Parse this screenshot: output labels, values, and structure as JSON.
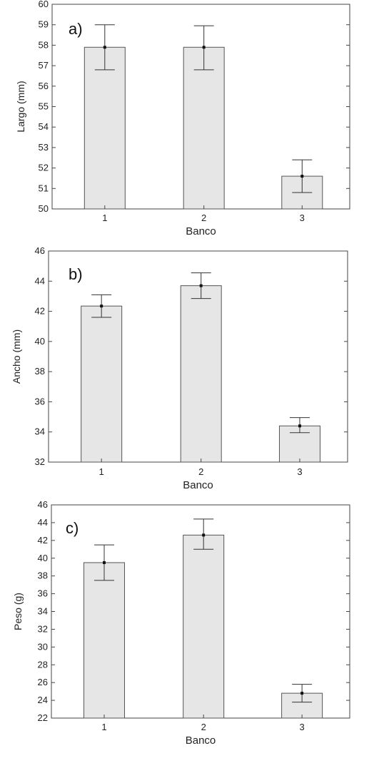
{
  "chart_data": [
    {
      "type": "bar",
      "panel_label": "a)",
      "categories": [
        "1",
        "2",
        "3"
      ],
      "values": [
        57.9,
        57.9,
        51.6
      ],
      "error_low": [
        56.8,
        56.8,
        50.8
      ],
      "error_high": [
        59.0,
        58.95,
        52.4
      ],
      "xlabel": "Banco",
      "ylabel": "Largo (mm)",
      "ylim": [
        50,
        60
      ],
      "yticks": [
        "50",
        "51",
        "52",
        "53",
        "54",
        "55",
        "56",
        "57",
        "58",
        "59",
        "60"
      ],
      "grid": false,
      "bar_color": "#e6e6e6"
    },
    {
      "type": "bar",
      "panel_label": "b)",
      "categories": [
        "1",
        "2",
        "3"
      ],
      "values": [
        42.35,
        43.7,
        34.4
      ],
      "error_low": [
        41.6,
        42.85,
        33.95
      ],
      "error_high": [
        43.1,
        44.55,
        34.95
      ],
      "xlabel": "Banco",
      "ylabel": "Ancho (mm)",
      "ylim": [
        32,
        46
      ],
      "yticks": [
        "32",
        "34",
        "36",
        "38",
        "40",
        "42",
        "44",
        "46"
      ],
      "grid": false,
      "bar_color": "#e6e6e6"
    },
    {
      "type": "bar",
      "panel_label": "c)",
      "categories": [
        "1",
        "2",
        "3"
      ],
      "values": [
        39.5,
        42.6,
        24.8
      ],
      "error_low": [
        37.5,
        41.0,
        23.8
      ],
      "error_high": [
        41.5,
        44.4,
        25.8
      ],
      "xlabel": "Banco",
      "ylabel": "Peso (g)",
      "ylim": [
        22,
        46
      ],
      "yticks": [
        "22",
        "24",
        "26",
        "28",
        "30",
        "32",
        "34",
        "36",
        "38",
        "40",
        "42",
        "44",
        "46"
      ],
      "grid": false,
      "bar_color": "#e6e6e6"
    }
  ]
}
